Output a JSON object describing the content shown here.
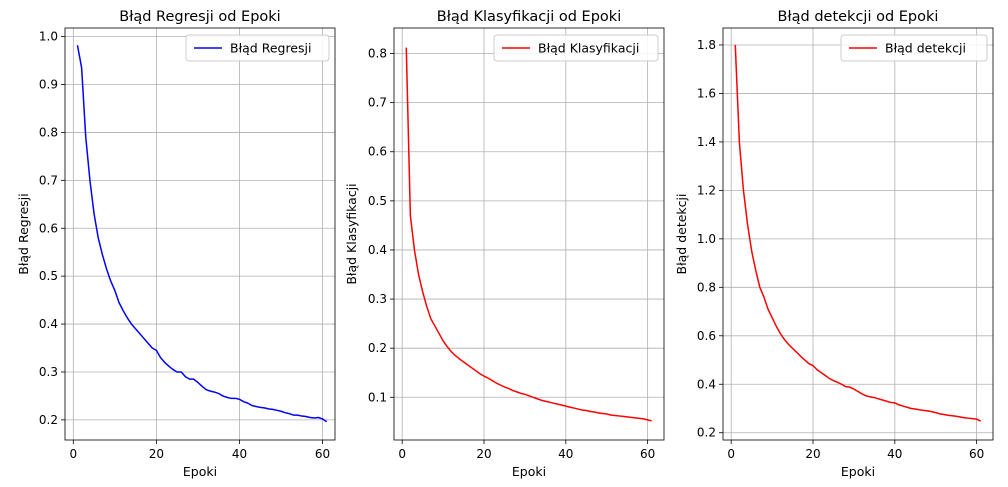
{
  "chart_data": [
    {
      "type": "line",
      "title": "Błąd Regresji od Epoki",
      "xlabel": "Epoki",
      "ylabel": "Błąd Regresji",
      "xlim": [
        -2,
        63
      ],
      "ylim": [
        0.158,
        1.018
      ],
      "xticks": [
        0,
        20,
        40,
        60
      ],
      "yticks": [
        0.2,
        0.3,
        0.4,
        0.5,
        0.6,
        0.7,
        0.8,
        0.9,
        1.0
      ],
      "ytick_labels": [
        "0.2",
        "0.3",
        "0.4",
        "0.5",
        "0.6",
        "0.7",
        "0.8",
        "0.9",
        "1.0"
      ],
      "grid": true,
      "legend": "upper right",
      "series": [
        {
          "name": "Błąd Regresji",
          "color": "#0000ff",
          "x": [
            1,
            2,
            3,
            4,
            5,
            6,
            7,
            8,
            9,
            10,
            11,
            12,
            13,
            14,
            15,
            16,
            17,
            18,
            19,
            20,
            21,
            22,
            23,
            24,
            25,
            26,
            27,
            28,
            29,
            30,
            31,
            32,
            33,
            34,
            35,
            36,
            37,
            38,
            39,
            40,
            41,
            42,
            43,
            44,
            45,
            46,
            47,
            48,
            49,
            50,
            51,
            52,
            53,
            54,
            55,
            56,
            57,
            58,
            59,
            60,
            61
          ],
          "values": [
            0.982,
            0.935,
            0.79,
            0.7,
            0.63,
            0.58,
            0.545,
            0.515,
            0.49,
            0.47,
            0.445,
            0.428,
            0.413,
            0.4,
            0.39,
            0.38,
            0.37,
            0.36,
            0.35,
            0.345,
            0.33,
            0.32,
            0.312,
            0.305,
            0.3,
            0.3,
            0.29,
            0.285,
            0.285,
            0.278,
            0.27,
            0.263,
            0.26,
            0.258,
            0.255,
            0.25,
            0.247,
            0.245,
            0.245,
            0.243,
            0.238,
            0.235,
            0.23,
            0.228,
            0.226,
            0.225,
            0.223,
            0.222,
            0.22,
            0.218,
            0.215,
            0.213,
            0.21,
            0.21,
            0.208,
            0.207,
            0.205,
            0.204,
            0.205,
            0.202,
            0.196
          ]
        }
      ]
    },
    {
      "type": "line",
      "title": "Błąd Klasyfikacji od Epoki",
      "xlabel": "Epoki",
      "ylabel": "Błąd Klasyfikacji",
      "xlim": [
        -2,
        64
      ],
      "ylim": [
        0.013,
        0.852
      ],
      "xticks": [
        0,
        20,
        40,
        60
      ],
      "yticks": [
        0.1,
        0.2,
        0.3,
        0.4,
        0.5,
        0.6,
        0.7,
        0.8
      ],
      "ytick_labels": [
        "0.1",
        "0.2",
        "0.3",
        "0.4",
        "0.5",
        "0.6",
        "0.7",
        "0.8"
      ],
      "grid": true,
      "legend": "upper right",
      "series": [
        {
          "name": "Błąd Klasyfikacji",
          "color": "#ff0000",
          "x": [
            1,
            2,
            3,
            4,
            5,
            6,
            7,
            8,
            9,
            10,
            11,
            12,
            13,
            14,
            15,
            16,
            17,
            18,
            19,
            20,
            21,
            22,
            23,
            24,
            25,
            26,
            27,
            28,
            29,
            30,
            31,
            32,
            33,
            34,
            35,
            36,
            37,
            38,
            39,
            40,
            41,
            42,
            43,
            44,
            45,
            46,
            47,
            48,
            49,
            50,
            51,
            52,
            53,
            54,
            55,
            56,
            57,
            58,
            59,
            60,
            61
          ],
          "values": [
            0.812,
            0.47,
            0.4,
            0.35,
            0.315,
            0.285,
            0.26,
            0.245,
            0.23,
            0.215,
            0.203,
            0.193,
            0.185,
            0.178,
            0.172,
            0.166,
            0.16,
            0.154,
            0.148,
            0.143,
            0.139,
            0.134,
            0.129,
            0.125,
            0.121,
            0.118,
            0.114,
            0.111,
            0.108,
            0.106,
            0.103,
            0.1,
            0.097,
            0.094,
            0.092,
            0.09,
            0.088,
            0.086,
            0.084,
            0.082,
            0.08,
            0.078,
            0.076,
            0.074,
            0.073,
            0.071,
            0.07,
            0.068,
            0.067,
            0.066,
            0.064,
            0.063,
            0.062,
            0.061,
            0.06,
            0.059,
            0.058,
            0.057,
            0.056,
            0.054,
            0.052
          ]
        }
      ]
    },
    {
      "type": "line",
      "title": "Błąd detekcji od Epoki",
      "xlabel": "Epoki",
      "ylabel": "Błąd detekcji",
      "xlim": [
        -2,
        64
      ],
      "ylim": [
        0.17,
        1.87
      ],
      "xticks": [
        0,
        20,
        40,
        60
      ],
      "yticks": [
        0.2,
        0.4,
        0.6,
        0.8,
        1.0,
        1.2,
        1.4,
        1.6,
        1.8
      ],
      "ytick_labels": [
        "0.2",
        "0.4",
        "0.6",
        "0.8",
        "1.0",
        "1.2",
        "1.4",
        "1.6",
        "1.8"
      ],
      "grid": true,
      "legend": "upper right",
      "series": [
        {
          "name": "Błąd detekcji",
          "color": "#ff0000",
          "x": [
            1,
            2,
            3,
            4,
            5,
            6,
            7,
            8,
            9,
            10,
            11,
            12,
            13,
            14,
            15,
            16,
            17,
            18,
            19,
            20,
            21,
            22,
            23,
            24,
            25,
            26,
            27,
            28,
            29,
            30,
            31,
            32,
            33,
            34,
            35,
            36,
            37,
            38,
            39,
            40,
            41,
            42,
            43,
            44,
            45,
            46,
            47,
            48,
            49,
            50,
            51,
            52,
            53,
            54,
            55,
            56,
            57,
            58,
            59,
            60,
            61
          ],
          "values": [
            1.8,
            1.4,
            1.2,
            1.06,
            0.95,
            0.87,
            0.8,
            0.76,
            0.71,
            0.675,
            0.64,
            0.61,
            0.585,
            0.565,
            0.548,
            0.532,
            0.515,
            0.5,
            0.485,
            0.477,
            0.46,
            0.448,
            0.436,
            0.424,
            0.415,
            0.408,
            0.4,
            0.39,
            0.388,
            0.38,
            0.37,
            0.36,
            0.352,
            0.348,
            0.345,
            0.34,
            0.335,
            0.33,
            0.325,
            0.323,
            0.315,
            0.31,
            0.305,
            0.3,
            0.298,
            0.295,
            0.292,
            0.29,
            0.287,
            0.283,
            0.278,
            0.275,
            0.272,
            0.27,
            0.268,
            0.265,
            0.262,
            0.26,
            0.258,
            0.256,
            0.248
          ]
        }
      ]
    }
  ]
}
